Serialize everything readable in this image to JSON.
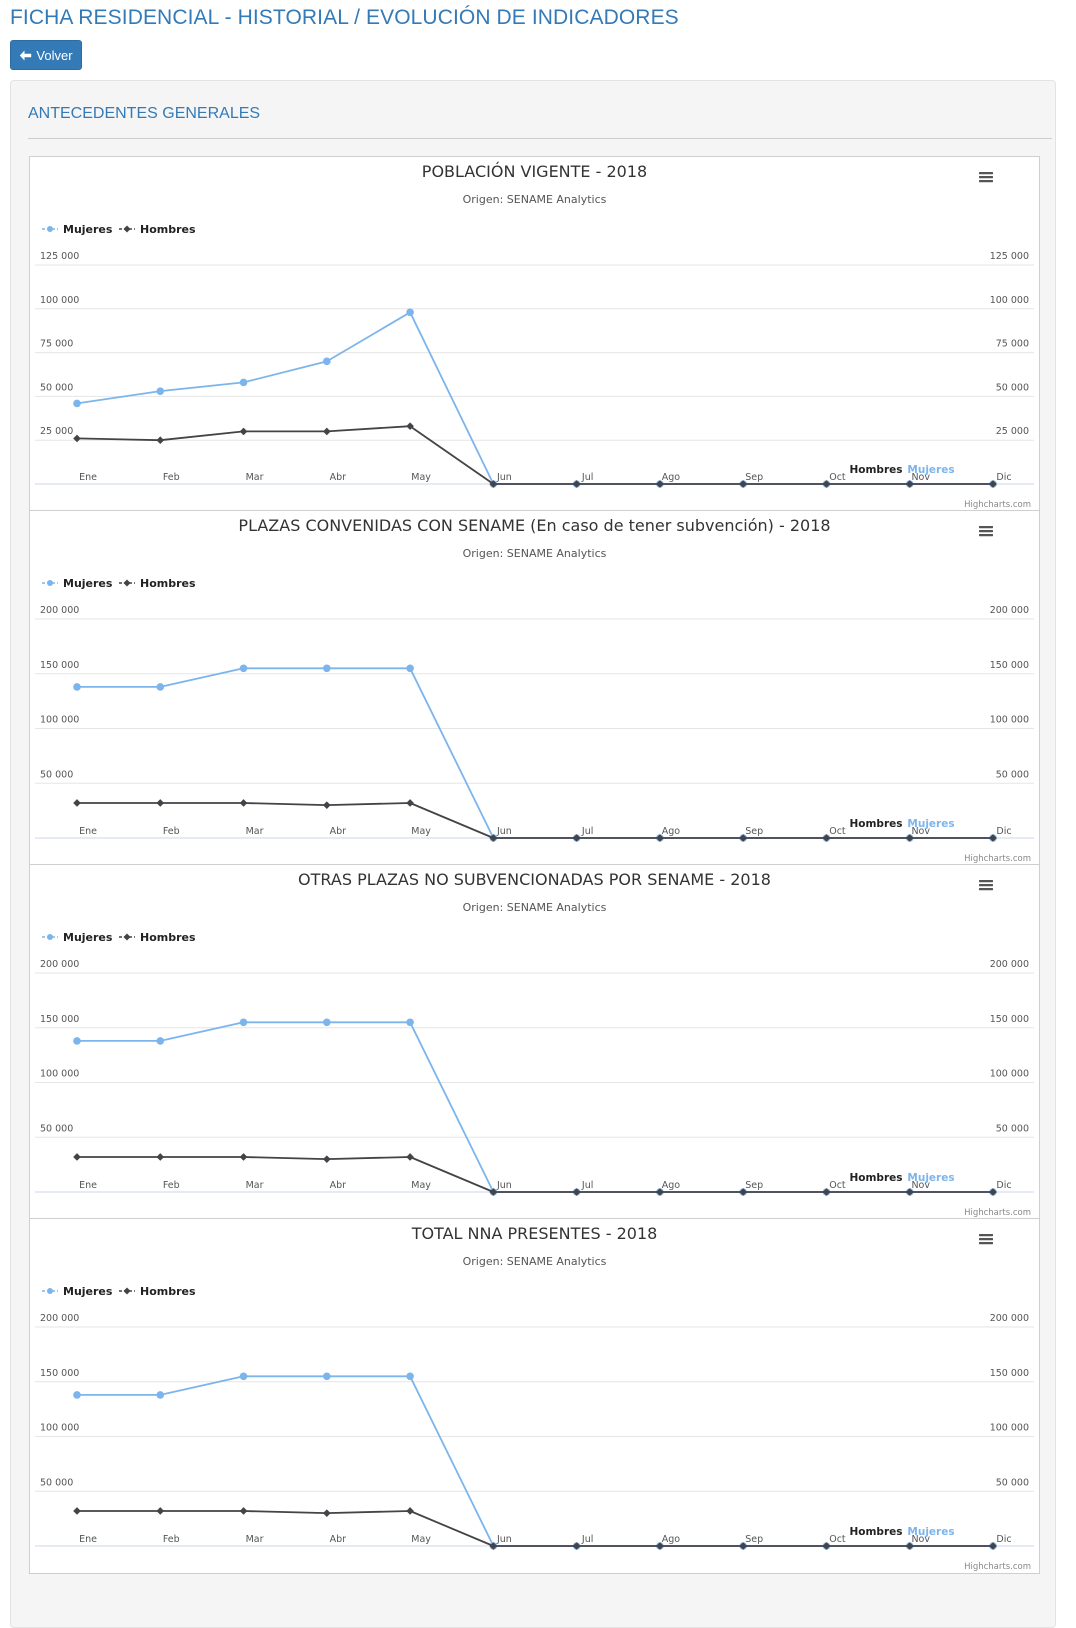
{
  "header": {
    "title": "FICHA RESIDENCIAL - HISTORIAL / EVOLUCIÓN DE INDICADORES",
    "back_label": "Volver"
  },
  "section": {
    "title": "ANTECEDENTES GENERALES"
  },
  "colors": {
    "accent": "#337ab7",
    "mujeres": "#7cb5ec",
    "hombres": "#434348"
  },
  "icons": {
    "back": "arrow-left-icon",
    "menu": "hamburger-menu-icon"
  },
  "credits": "Highcharts.com",
  "chart_data": [
    {
      "type": "line",
      "title": "POBLACIÓN VIGENTE - 2018",
      "subtitle": "Origen: SENAME Analytics",
      "categories": [
        "Ene",
        "Feb",
        "Mar",
        "Abr",
        "May",
        "Jun",
        "Jul",
        "Ago",
        "Sep",
        "Oct",
        "Nov",
        "Dic"
      ],
      "series": [
        {
          "name": "Mujeres",
          "values": [
            46000,
            53000,
            58000,
            70000,
            98000,
            0,
            0,
            0,
            0,
            0,
            0,
            0
          ]
        },
        {
          "name": "Hombres",
          "values": [
            26000,
            25000,
            30000,
            30000,
            33000,
            0,
            0,
            0,
            0,
            0,
            0,
            0
          ]
        }
      ],
      "ylim": [
        0,
        125000
      ],
      "yticks": [
        25000,
        50000,
        75000,
        100000,
        125000
      ],
      "yticks_labels": [
        "25 000",
        "50 000",
        "75 000",
        "100 000",
        "125 000"
      ],
      "axis_titles": [
        "Hombres",
        "Mujeres"
      ],
      "legend": "top-left",
      "grid": true
    },
    {
      "type": "line",
      "title": "PLAZAS CONVENIDAS CON SENAME (En caso de tener subvención) - 2018",
      "subtitle": "Origen: SENAME Analytics",
      "categories": [
        "Ene",
        "Feb",
        "Mar",
        "Abr",
        "May",
        "Jun",
        "Jul",
        "Ago",
        "Sep",
        "Oct",
        "Nov",
        "Dic"
      ],
      "series": [
        {
          "name": "Mujeres",
          "values": [
            138000,
            138000,
            155000,
            155000,
            155000,
            0,
            0,
            0,
            0,
            0,
            0,
            0
          ]
        },
        {
          "name": "Hombres",
          "values": [
            32000,
            32000,
            32000,
            30000,
            32000,
            0,
            0,
            0,
            0,
            0,
            0,
            0
          ]
        }
      ],
      "ylim": [
        0,
        200000
      ],
      "yticks": [
        50000,
        100000,
        150000,
        200000
      ],
      "yticks_labels": [
        "50 000",
        "100 000",
        "150 000",
        "200 000"
      ],
      "axis_titles": [
        "Hombres",
        "Mujeres"
      ],
      "legend": "top-left",
      "grid": true
    },
    {
      "type": "line",
      "title": "OTRAS PLAZAS NO SUBVENCIONADAS POR SENAME - 2018",
      "subtitle": "Origen: SENAME Analytics",
      "categories": [
        "Ene",
        "Feb",
        "Mar",
        "Abr",
        "May",
        "Jun",
        "Jul",
        "Ago",
        "Sep",
        "Oct",
        "Nov",
        "Dic"
      ],
      "series": [
        {
          "name": "Mujeres",
          "values": [
            138000,
            138000,
            155000,
            155000,
            155000,
            0,
            0,
            0,
            0,
            0,
            0,
            0
          ]
        },
        {
          "name": "Hombres",
          "values": [
            32000,
            32000,
            32000,
            30000,
            32000,
            0,
            0,
            0,
            0,
            0,
            0,
            0
          ]
        }
      ],
      "ylim": [
        0,
        200000
      ],
      "yticks": [
        50000,
        100000,
        150000,
        200000
      ],
      "yticks_labels": [
        "50 000",
        "100 000",
        "150 000",
        "200 000"
      ],
      "axis_titles": [
        "Hombres",
        "Mujeres"
      ],
      "legend": "top-left",
      "grid": true
    },
    {
      "type": "line",
      "title": "TOTAL NNA PRESENTES - 2018",
      "subtitle": "Origen: SENAME Analytics",
      "categories": [
        "Ene",
        "Feb",
        "Mar",
        "Abr",
        "May",
        "Jun",
        "Jul",
        "Ago",
        "Sep",
        "Oct",
        "Nov",
        "Dic"
      ],
      "series": [
        {
          "name": "Mujeres",
          "values": [
            138000,
            138000,
            155000,
            155000,
            155000,
            0,
            0,
            0,
            0,
            0,
            0,
            0
          ]
        },
        {
          "name": "Hombres",
          "values": [
            32000,
            32000,
            32000,
            30000,
            32000,
            0,
            0,
            0,
            0,
            0,
            0,
            0
          ]
        }
      ],
      "ylim": [
        0,
        200000
      ],
      "yticks": [
        50000,
        100000,
        150000,
        200000
      ],
      "yticks_labels": [
        "50 000",
        "100 000",
        "150 000",
        "200 000"
      ],
      "axis_titles": [
        "Hombres",
        "Mujeres"
      ],
      "legend": "top-left",
      "grid": true
    }
  ]
}
